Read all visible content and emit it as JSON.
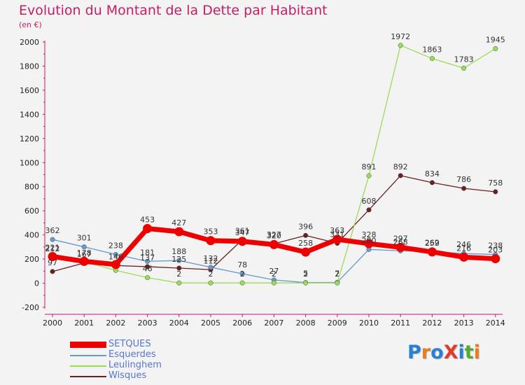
{
  "title": "Evolution du Montant de la Dette par Habitant",
  "unit_label": "(en €)",
  "logo_text": "ProXiti",
  "chart_data": {
    "type": "line",
    "x": [
      2000,
      2001,
      2002,
      2003,
      2004,
      2005,
      2006,
      2007,
      2008,
      2009,
      2010,
      2011,
      2012,
      2013,
      2014
    ],
    "ylim": [
      -200,
      2000
    ],
    "yticks": [
      -200,
      0,
      200,
      400,
      600,
      800,
      1000,
      1200,
      1400,
      1600,
      1800,
      2000
    ],
    "grid": false,
    "legend_position": "bottom-left",
    "series": [
      {
        "name": "Wisques",
        "color": "#6b1f1f",
        "values": [
          97,
          167,
          146,
          137,
          125,
          112,
          361,
          327,
          396,
          331,
          608,
          892,
          834,
          786,
          758
        ]
      },
      {
        "name": "Esquerdes",
        "color": "#6699cc",
        "values": [
          362,
          301,
          238,
          181,
          188,
          132,
          78,
          27,
          5,
          7,
          280,
          268,
          262,
          246,
          238
        ]
      },
      {
        "name": "Leulinghem",
        "color": "#99dd55",
        "values": [
          212,
          178,
          106,
          46,
          2,
          2,
          2,
          2,
          2,
          2,
          891,
          1972,
          1863,
          1783,
          1945
        ]
      },
      {
        "name": "SETQUES",
        "color": "#ee0000",
        "values": [
          221,
          181,
          155,
          453,
          427,
          353,
          347,
          320,
          258,
          363,
          328,
          297,
          259,
          216,
          203
        ]
      }
    ],
    "labels": [
      {
        "series": "SETQUES",
        "text": [
          "221",
          "",
          "",
          "453",
          "427",
          "353",
          "347",
          "320",
          "258",
          "363",
          "328",
          "297",
          "259",
          "216",
          "203"
        ]
      },
      {
        "series": "Esquerdes",
        "text": [
          "362",
          "301",
          "238",
          "181",
          "188",
          "132",
          "78",
          "27",
          "5",
          "7",
          "280",
          "268",
          "262",
          "246",
          "238"
        ]
      },
      {
        "series": "Leulinghem",
        "text": [
          "212",
          "178",
          "",
          "46",
          "2",
          "2",
          "2",
          "2",
          "2",
          "2",
          "891",
          "1972",
          "1863",
          "1783",
          "1945"
        ]
      },
      {
        "series": "Wisques",
        "text": [
          "97",
          "167",
          "146",
          "137",
          "125",
          "112",
          "361",
          "327",
          "396",
          "331",
          "608",
          "892",
          "834",
          "786",
          "758"
        ]
      }
    ]
  },
  "legend": [
    {
      "label": "SETQUES",
      "color": "#ee0000",
      "thick": true
    },
    {
      "label": "Esquerdes",
      "color": "#6699cc",
      "thick": false
    },
    {
      "label": "Leulinghem",
      "color": "#99dd55",
      "thick": false
    },
    {
      "label": "Wisques",
      "color": "#6b1f1f",
      "thick": false
    }
  ],
  "logo_colors": [
    "#2a7fd4",
    "#e87d1e",
    "#2a7fd4",
    "#e03a2a",
    "#2a7fd4",
    "#55aa33",
    "#e87d1e"
  ]
}
